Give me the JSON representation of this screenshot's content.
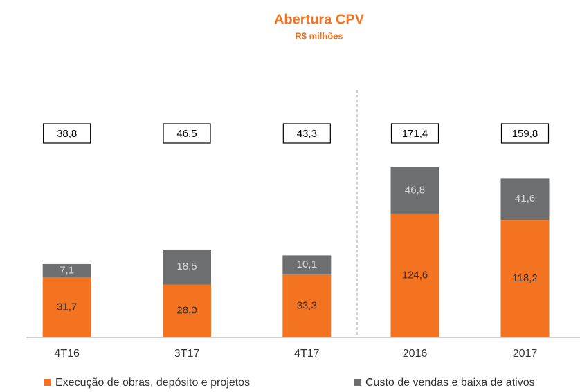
{
  "chart_data": [
    {
      "type": "stacked_bar",
      "title": "Abertura CPV",
      "subtitle": "R$ milhões",
      "categories": [
        "4T16",
        "3T17",
        "4T17"
      ],
      "series": [
        {
          "name": "Execução de obras, depósito e projetos",
          "color": "#f47321",
          "values": [
            31.7,
            28.0,
            33.3
          ],
          "value_labels": [
            "31,7",
            "28,0",
            "33,3"
          ]
        },
        {
          "name": "Custo de vendas e baixa de ativos",
          "color": "#6d6e70",
          "values": [
            7.1,
            18.5,
            10.1
          ],
          "value_labels": [
            "7,1",
            "18,5",
            "10,1"
          ]
        }
      ],
      "total_labels": [
        "38,8",
        "46,5",
        "43,3"
      ],
      "ylim": [
        0,
        142
      ]
    },
    {
      "type": "stacked_bar",
      "categories": [
        "2016",
        "2017"
      ],
      "series": [
        {
          "color": "#f47321",
          "values": [
            124.6,
            118.2
          ],
          "value_labels": [
            "124,6",
            "118,2"
          ]
        },
        {
          "color": "#6d6e70",
          "values": [
            46.8,
            41.6
          ],
          "value_labels": [
            "46,8",
            "41,6"
          ]
        }
      ],
      "total_labels": [
        "171,4",
        "159,8"
      ],
      "ylim": [
        0,
        270
      ]
    }
  ]
}
